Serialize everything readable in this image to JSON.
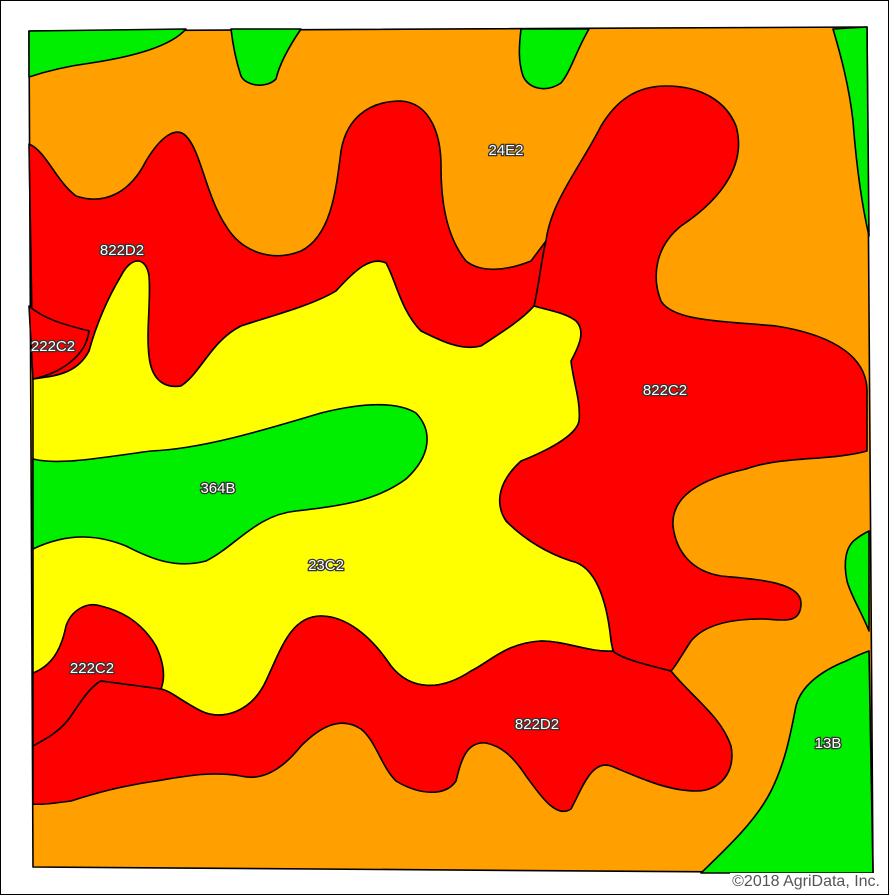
{
  "map": {
    "colors": {
      "orange": "#FF9F00",
      "red": "#FF0000",
      "yellow": "#FFFF00",
      "green": "#00EE00",
      "outline": "#000000"
    },
    "labels": {
      "l_24E2": "24E2",
      "l_822D2_top": "822D2",
      "l_222C2_left": "222C2",
      "l_822C2": "822C2",
      "l_364B": "364B",
      "l_23C2": "23C2",
      "l_222C2_bottom": "222C2",
      "l_822D2_bottom": "822D2",
      "l_13B": "13B"
    },
    "copyright": "©2018 AgriData, Inc."
  }
}
